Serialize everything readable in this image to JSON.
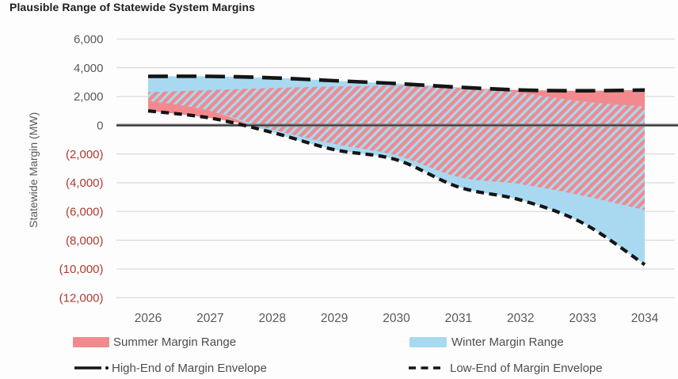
{
  "title": "Plausible Range of Statewide System Margins",
  "colors": {
    "summer": "#F28A8D",
    "winter": "#A8D9F1",
    "hatch_stripe": "#EF8A8F",
    "envelope_line": "#151515",
    "grid": "#DADADA",
    "zero_axis": "#7A7A7A",
    "zero_axis_core": "#2B2B2B",
    "tick_positive": "#595959",
    "tick_negative": "#B03A30",
    "title_text": "#1F1F1F",
    "legend_text": "#4D4D4D"
  },
  "y_axis": {
    "label": "Statewide Margin (MW)",
    "ticks": [
      {
        "label": "6,000",
        "value": 6000,
        "negative": false
      },
      {
        "label": "4,000",
        "value": 4000,
        "negative": false
      },
      {
        "label": "2,000",
        "value": 2000,
        "negative": false
      },
      {
        "label": "0",
        "value": 0,
        "negative": false
      },
      {
        "label": "(2,000)",
        "value": -2000,
        "negative": true
      },
      {
        "label": "(4,000)",
        "value": -4000,
        "negative": true
      },
      {
        "label": "(6,000)",
        "value": -6000,
        "negative": true
      },
      {
        "label": "(8,000)",
        "value": -8000,
        "negative": true
      },
      {
        "label": "(10,000)",
        "value": -10000,
        "negative": true
      },
      {
        "label": "(12,000)",
        "value": -12000,
        "negative": true
      }
    ]
  },
  "x_axis": {
    "ticks": [
      "2026",
      "2027",
      "2028",
      "2029",
      "2030",
      "2031",
      "2032",
      "2033",
      "2034"
    ]
  },
  "legend": {
    "summer": {
      "label": "Summer Margin Range"
    },
    "winter": {
      "label": "Winter Margin Range"
    },
    "high_end": {
      "label": "High-End of Margin Envelope"
    },
    "low_end": {
      "label": "Low-End of Margin Envelope"
    }
  },
  "chart_data": {
    "type": "area",
    "title": "Plausible Range of Statewide System Margins",
    "ylabel": "Statewide Margin (MW)",
    "ylim": [
      -12000,
      6000
    ],
    "grid": true,
    "legend_position": "bottom",
    "x": [
      2026,
      2027,
      2028,
      2029,
      2030,
      2031,
      2032,
      2033,
      2034
    ],
    "series": [
      {
        "name": "Summer Margin Range",
        "type": "band",
        "color": "#F28A8D",
        "pattern": "diagonal-hatch-in-overlap",
        "top": [
          2300,
          2450,
          2600,
          2700,
          2750,
          2600,
          2450,
          2400,
          2450
        ],
        "bottom": [
          1000,
          500,
          -300,
          -1300,
          -2100,
          -3600,
          -4100,
          -4900,
          -5900
        ]
      },
      {
        "name": "Winter Margin Range",
        "type": "band",
        "color": "#A8D9F1",
        "top": [
          3400,
          3400,
          3300,
          3100,
          2900,
          2650,
          2250,
          1650,
          1300
        ],
        "bottom": [
          1700,
          1000,
          -500,
          -1700,
          -2400,
          -4300,
          -5200,
          -6800,
          -9700
        ]
      },
      {
        "name": "High-End of Margin Envelope",
        "type": "line",
        "style": "long-dash",
        "color": "#151515",
        "values": [
          3400,
          3400,
          3300,
          3100,
          2900,
          2650,
          2450,
          2400,
          2450
        ]
      },
      {
        "name": "Low-End of Margin Envelope",
        "type": "line",
        "style": "short-dash",
        "color": "#151515",
        "values": [
          1000,
          500,
          -500,
          -1700,
          -2400,
          -4300,
          -5200,
          -6800,
          -9700
        ]
      }
    ]
  }
}
